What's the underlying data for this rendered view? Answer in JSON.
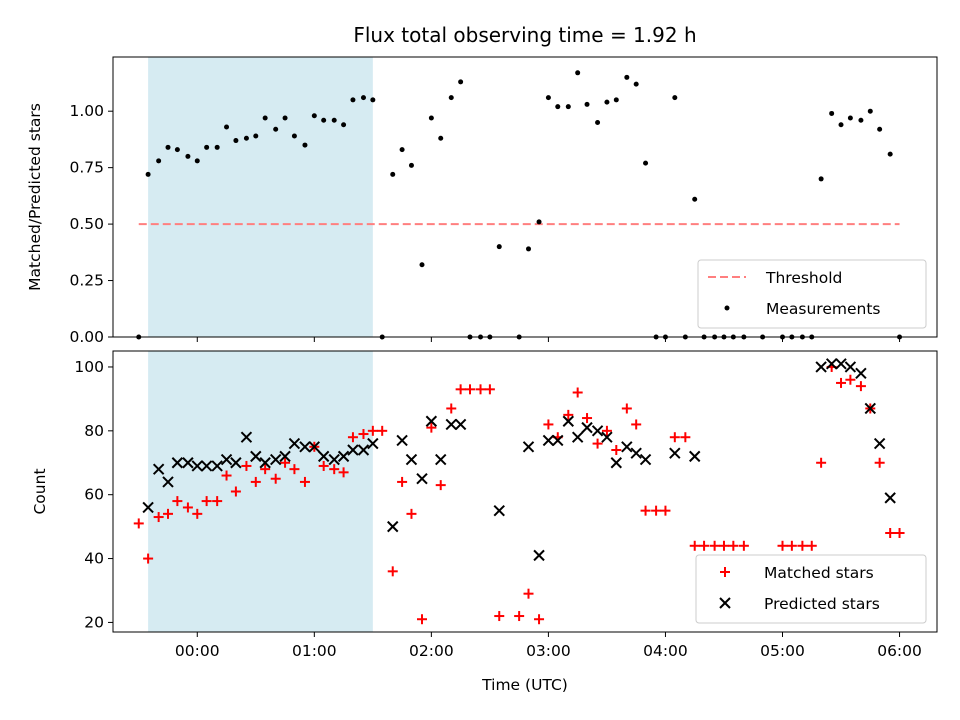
{
  "chart_data": [
    {
      "type": "scatter",
      "title": "Flux total observing time = 1.92 h",
      "ylabel": "Matched/Predicted stars",
      "xlabel": "",
      "xlim": [
        -0.72,
        6.32
      ],
      "ylim": [
        0,
        1.24
      ],
      "yticks": [
        0,
        0.25,
        0.5,
        0.75,
        1.0
      ],
      "ytick_labels": [
        "0.00",
        "0.25",
        "0.50",
        "0.75",
        "1.00"
      ],
      "shaded_x_range": [
        -0.42,
        1.5
      ],
      "shaded_color": "#add8e6",
      "threshold": {
        "name": "Threshold",
        "value": 0.5,
        "x": [
          -0.5,
          6.0
        ],
        "color": "#ff7f7f"
      },
      "legend_position": "lower-right",
      "series": [
        {
          "name": "Measurements",
          "color": "#000000",
          "marker": "dot",
          "points": [
            [
              -0.5,
              0
            ],
            [
              -0.42,
              0.72
            ],
            [
              -0.33,
              0.78
            ],
            [
              -0.25,
              0.84
            ],
            [
              -0.17,
              0.83
            ],
            [
              -0.08,
              0.8
            ],
            [
              0.0,
              0.78
            ],
            [
              0.08,
              0.84
            ],
            [
              0.17,
              0.84
            ],
            [
              0.25,
              0.93
            ],
            [
              0.33,
              0.87
            ],
            [
              0.42,
              0.88
            ],
            [
              0.5,
              0.89
            ],
            [
              0.58,
              0.97
            ],
            [
              0.67,
              0.92
            ],
            [
              0.75,
              0.97
            ],
            [
              0.83,
              0.89
            ],
            [
              0.92,
              0.85
            ],
            [
              1.0,
              0.98
            ],
            [
              1.08,
              0.96
            ],
            [
              1.17,
              0.96
            ],
            [
              1.25,
              0.94
            ],
            [
              1.33,
              1.05
            ],
            [
              1.42,
              1.06
            ],
            [
              1.5,
              1.05
            ],
            [
              1.58,
              0
            ],
            [
              1.67,
              0.72
            ],
            [
              1.75,
              0.83
            ],
            [
              1.83,
              0.76
            ],
            [
              1.92,
              0.32
            ],
            [
              2.0,
              0.97
            ],
            [
              2.08,
              0.88
            ],
            [
              2.17,
              1.06
            ],
            [
              2.25,
              1.13
            ],
            [
              2.33,
              0
            ],
            [
              2.42,
              0
            ],
            [
              2.5,
              0
            ],
            [
              2.58,
              0.4
            ],
            [
              2.75,
              0
            ],
            [
              2.83,
              0.39
            ],
            [
              2.92,
              0.51
            ],
            [
              3.0,
              1.06
            ],
            [
              3.08,
              1.02
            ],
            [
              3.17,
              1.02
            ],
            [
              3.25,
              1.17
            ],
            [
              3.33,
              1.03
            ],
            [
              3.42,
              0.95
            ],
            [
              3.5,
              1.04
            ],
            [
              3.58,
              1.05
            ],
            [
              3.67,
              1.15
            ],
            [
              3.75,
              1.12
            ],
            [
              3.83,
              0.77
            ],
            [
              3.92,
              0
            ],
            [
              4.0,
              0
            ],
            [
              4.08,
              1.06
            ],
            [
              4.17,
              0
            ],
            [
              4.25,
              0.61
            ],
            [
              4.33,
              0
            ],
            [
              4.42,
              0
            ],
            [
              4.5,
              0
            ],
            [
              4.58,
              0
            ],
            [
              4.67,
              0
            ],
            [
              4.83,
              0
            ],
            [
              5.0,
              0
            ],
            [
              5.08,
              0
            ],
            [
              5.17,
              0
            ],
            [
              5.25,
              0
            ],
            [
              5.33,
              0.7
            ],
            [
              5.42,
              0.99
            ],
            [
              5.5,
              0.94
            ],
            [
              5.58,
              0.97
            ],
            [
              5.67,
              0.96
            ],
            [
              5.75,
              1.0
            ],
            [
              5.83,
              0.92
            ],
            [
              5.92,
              0.81
            ],
            [
              6.0,
              0
            ]
          ]
        }
      ]
    },
    {
      "type": "scatter",
      "title": "",
      "ylabel": "Count",
      "xlabel": "Time (UTC)",
      "xlim": [
        -0.72,
        6.32
      ],
      "ylim": [
        17,
        105
      ],
      "yticks": [
        20,
        40,
        60,
        80,
        100
      ],
      "ytick_labels": [
        "20",
        "40",
        "60",
        "80",
        "100"
      ],
      "xticks": [
        0,
        1,
        2,
        3,
        4,
        5,
        6
      ],
      "xtick_labels": [
        "00:00",
        "01:00",
        "02:00",
        "03:00",
        "04:00",
        "05:00",
        "06:00"
      ],
      "shaded_x_range": [
        -0.42,
        1.5
      ],
      "shaded_color": "#add8e6",
      "legend_position": "lower-right",
      "series": [
        {
          "name": "Matched stars",
          "color": "#ff0000",
          "marker": "plus",
          "points": [
            [
              -0.5,
              51
            ],
            [
              -0.42,
              40
            ],
            [
              -0.33,
              53
            ],
            [
              -0.25,
              54
            ],
            [
              -0.17,
              58
            ],
            [
              -0.08,
              56
            ],
            [
              0.0,
              54
            ],
            [
              0.08,
              58
            ],
            [
              0.17,
              58
            ],
            [
              0.25,
              66
            ],
            [
              0.33,
              61
            ],
            [
              0.42,
              69
            ],
            [
              0.5,
              64
            ],
            [
              0.58,
              68
            ],
            [
              0.67,
              65
            ],
            [
              0.75,
              70
            ],
            [
              0.83,
              68
            ],
            [
              0.92,
              64
            ],
            [
              1.0,
              75
            ],
            [
              1.08,
              69
            ],
            [
              1.17,
              68
            ],
            [
              1.25,
              67
            ],
            [
              1.33,
              78
            ],
            [
              1.42,
              79
            ],
            [
              1.5,
              80
            ],
            [
              1.58,
              80
            ],
            [
              1.67,
              36
            ],
            [
              1.75,
              64
            ],
            [
              1.83,
              54
            ],
            [
              1.92,
              21
            ],
            [
              2.0,
              81
            ],
            [
              2.08,
              63
            ],
            [
              2.17,
              87
            ],
            [
              2.25,
              93
            ],
            [
              2.33,
              93
            ],
            [
              2.42,
              93
            ],
            [
              2.5,
              93
            ],
            [
              2.58,
              22
            ],
            [
              2.75,
              22
            ],
            [
              2.83,
              29
            ],
            [
              2.92,
              21
            ],
            [
              3.0,
              82
            ],
            [
              3.08,
              78
            ],
            [
              3.17,
              85
            ],
            [
              3.25,
              92
            ],
            [
              3.33,
              84
            ],
            [
              3.42,
              76
            ],
            [
              3.5,
              80
            ],
            [
              3.58,
              74
            ],
            [
              3.67,
              87
            ],
            [
              3.75,
              82
            ],
            [
              3.83,
              55
            ],
            [
              3.92,
              55
            ],
            [
              4.0,
              55
            ],
            [
              4.08,
              78
            ],
            [
              4.17,
              78
            ],
            [
              4.25,
              44
            ],
            [
              4.33,
              44
            ],
            [
              4.42,
              44
            ],
            [
              4.5,
              44
            ],
            [
              4.58,
              44
            ],
            [
              4.67,
              44
            ],
            [
              5.0,
              44
            ],
            [
              5.08,
              44
            ],
            [
              5.17,
              44
            ],
            [
              5.25,
              44
            ],
            [
              5.33,
              70
            ],
            [
              5.42,
              100
            ],
            [
              5.5,
              95
            ],
            [
              5.58,
              96
            ],
            [
              5.67,
              94
            ],
            [
              5.75,
              87
            ],
            [
              5.83,
              70
            ],
            [
              5.92,
              48
            ],
            [
              6.0,
              48
            ]
          ]
        },
        {
          "name": "Predicted stars",
          "color": "#000000",
          "marker": "x",
          "points": [
            [
              -0.42,
              56
            ],
            [
              -0.33,
              68
            ],
            [
              -0.25,
              64
            ],
            [
              -0.17,
              70
            ],
            [
              -0.08,
              70
            ],
            [
              0.0,
              69
            ],
            [
              0.08,
              69
            ],
            [
              0.17,
              69
            ],
            [
              0.25,
              71
            ],
            [
              0.33,
              70
            ],
            [
              0.42,
              78
            ],
            [
              0.5,
              72
            ],
            [
              0.58,
              70
            ],
            [
              0.67,
              71
            ],
            [
              0.75,
              72
            ],
            [
              0.83,
              76
            ],
            [
              0.92,
              75
            ],
            [
              1.0,
              75
            ],
            [
              1.08,
              72
            ],
            [
              1.17,
              71
            ],
            [
              1.25,
              72
            ],
            [
              1.33,
              74
            ],
            [
              1.42,
              74
            ],
            [
              1.5,
              76
            ],
            [
              1.67,
              50
            ],
            [
              1.75,
              77
            ],
            [
              1.83,
              71
            ],
            [
              1.92,
              65
            ],
            [
              2.0,
              83
            ],
            [
              2.08,
              71
            ],
            [
              2.17,
              82
            ],
            [
              2.25,
              82
            ],
            [
              2.58,
              55
            ],
            [
              2.83,
              75
            ],
            [
              2.92,
              41
            ],
            [
              3.0,
              77
            ],
            [
              3.08,
              77
            ],
            [
              3.17,
              83
            ],
            [
              3.25,
              78
            ],
            [
              3.33,
              81
            ],
            [
              3.42,
              80
            ],
            [
              3.5,
              78
            ],
            [
              3.58,
              70
            ],
            [
              3.67,
              75
            ],
            [
              3.75,
              73
            ],
            [
              3.83,
              71
            ],
            [
              4.08,
              73
            ],
            [
              4.25,
              72
            ],
            [
              5.33,
              100
            ],
            [
              5.42,
              101
            ],
            [
              5.5,
              101
            ],
            [
              5.58,
              100
            ],
            [
              5.67,
              98
            ],
            [
              5.75,
              87
            ],
            [
              5.83,
              76
            ],
            [
              5.92,
              59
            ]
          ]
        }
      ]
    }
  ]
}
